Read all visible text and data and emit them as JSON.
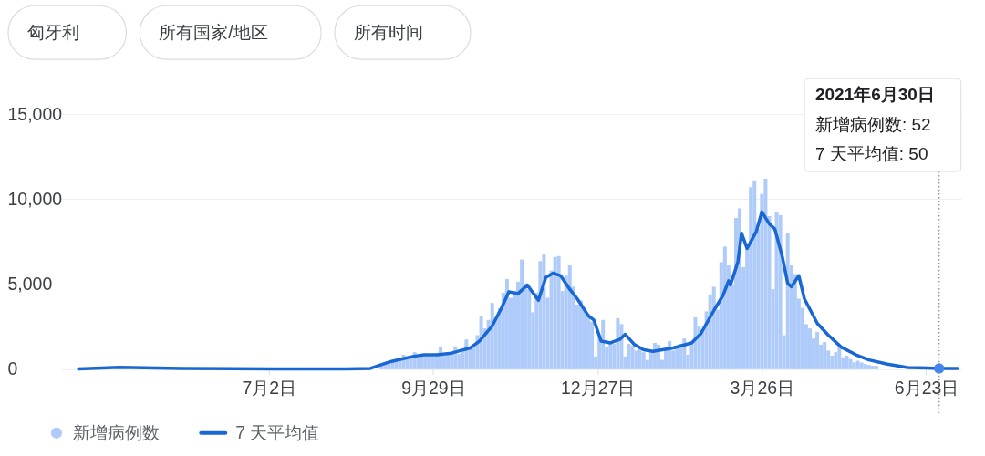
{
  "chart_data": [
    {
      "type": "other",
      "annotations": [
        "匈牙利",
        "所有国家/地区",
        "所有时间"
      ]
    },
    {
      "type": "bar",
      "xlim": [
        "2020-03-12",
        "2021-07-12"
      ],
      "xticks": [
        {
          "value": "2020-07-02",
          "label": "7月2日"
        },
        {
          "value": "2020-09-29",
          "label": "9月29日"
        },
        {
          "value": "2020-12-27",
          "label": "12月27日"
        },
        {
          "value": "2021-03-26",
          "label": "3月26日"
        },
        {
          "value": "2021-06-23",
          "label": "6月23日"
        }
      ],
      "ylim": [
        0,
        15000
      ],
      "yticks": [
        0,
        {
          "value": 5000,
          "label": "5,000"
        },
        {
          "value": 10000,
          "label": "10,000"
        },
        {
          "value": 15000,
          "label": "15,000"
        }
      ],
      "grid": "y",
      "legend": "bottom left",
      "series": [
        {
          "name": "新增病例数",
          "type": "bar",
          "color": "#aecbfa",
          "x": [
            "2020-09-01",
            "2020-09-03",
            "2020-09-05",
            "2020-09-07",
            "2020-09-09",
            "2020-09-11",
            "2020-09-13",
            "2020-09-15",
            "2020-09-17",
            "2020-09-19",
            "2020-09-21",
            "2020-09-23",
            "2020-09-25",
            "2020-09-27",
            "2020-09-29",
            "2020-10-01",
            "2020-10-03",
            "2020-10-05",
            "2020-10-07",
            "2020-10-09",
            "2020-10-11",
            "2020-10-13",
            "2020-10-15",
            "2020-10-17",
            "2020-10-19",
            "2020-10-21",
            "2020-10-23",
            "2020-10-25",
            "2020-10-27",
            "2020-10-29",
            "2020-10-31",
            "2020-11-02",
            "2020-11-04",
            "2020-11-06",
            "2020-11-08",
            "2020-11-10",
            "2020-11-12",
            "2020-11-14",
            "2020-11-16",
            "2020-11-18",
            "2020-11-20",
            "2020-11-22",
            "2020-11-24",
            "2020-11-26",
            "2020-11-28",
            "2020-11-30",
            "2020-12-02",
            "2020-12-04",
            "2020-12-06",
            "2020-12-08",
            "2020-12-10",
            "2020-12-12",
            "2020-12-14",
            "2020-12-16",
            "2020-12-18",
            "2020-12-20",
            "2020-12-22",
            "2020-12-24",
            "2020-12-26",
            "2020-12-28",
            "2020-12-30",
            "2021-01-01",
            "2021-01-03",
            "2021-01-05",
            "2021-01-07",
            "2021-01-09",
            "2021-01-11",
            "2021-01-13",
            "2021-01-15",
            "2021-01-17",
            "2021-01-19",
            "2021-01-21",
            "2021-01-23",
            "2021-01-25",
            "2021-01-27",
            "2021-01-29",
            "2021-01-31",
            "2021-02-02",
            "2021-02-04",
            "2021-02-06",
            "2021-02-08",
            "2021-02-10",
            "2021-02-12",
            "2021-02-14",
            "2021-02-16",
            "2021-02-18",
            "2021-02-20",
            "2021-02-22",
            "2021-02-24",
            "2021-02-26",
            "2021-02-28",
            "2021-03-02",
            "2021-03-04",
            "2021-03-06",
            "2021-03-08",
            "2021-03-10",
            "2021-03-12",
            "2021-03-14",
            "2021-03-16",
            "2021-03-18",
            "2021-03-20",
            "2021-03-22",
            "2021-03-24",
            "2021-03-26",
            "2021-03-28",
            "2021-03-30",
            "2021-04-01",
            "2021-04-03",
            "2021-04-05",
            "2021-04-07",
            "2021-04-09",
            "2021-04-11",
            "2021-04-13",
            "2021-04-15",
            "2021-04-17",
            "2021-04-19",
            "2021-04-21",
            "2021-04-23",
            "2021-04-25",
            "2021-04-27",
            "2021-04-29",
            "2021-05-01",
            "2021-05-03",
            "2021-05-05",
            "2021-05-07",
            "2021-05-09",
            "2021-05-11",
            "2021-05-13",
            "2021-05-15",
            "2021-05-17",
            "2021-05-19",
            "2021-05-21",
            "2021-05-23",
            "2021-05-25",
            "2021-05-27"
          ],
          "values": [
            250,
            350,
            450,
            500,
            600,
            700,
            850,
            700,
            800,
            1000,
            700,
            850,
            900,
            800,
            750,
            900,
            1300,
            800,
            950,
            1000,
            1350,
            900,
            1100,
            1750,
            1300,
            1500,
            2000,
            3100,
            2400,
            2900,
            3900,
            3000,
            3600,
            4500,
            5300,
            4200,
            4600,
            5150,
            6450,
            5050,
            4700,
            3350,
            4500,
            6350,
            6800,
            4200,
            5800,
            6600,
            6650,
            4600,
            5500,
            6100,
            4850,
            3800,
            4050,
            3500,
            3250,
            2800,
            750,
            1900,
            2900,
            1300,
            1650,
            1500,
            3000,
            2650,
            750,
            1500,
            1400,
            1100,
            1200,
            1000,
            550,
            1000,
            1550,
            1450,
            550,
            1200,
            1650,
            1100,
            1300,
            1500,
            1800,
            850,
            1500,
            3050,
            2500,
            2300,
            3400,
            4400,
            4850,
            3500,
            6300,
            7200,
            6100,
            5000,
            8900,
            9450,
            6000,
            7350,
            10700,
            11100,
            8250,
            10300,
            11200,
            9000,
            4700,
            9250,
            9050,
            2000,
            8000,
            6100,
            5600,
            4150,
            3600,
            2650,
            2400,
            1800,
            2200,
            1450,
            1600,
            1100,
            800,
            1000,
            1300,
            700,
            800,
            600,
            400,
            500,
            400,
            300,
            250,
            200,
            200
          ]
        },
        {
          "name": "7 天平均值",
          "type": "line",
          "color": "#1967d2",
          "x": [
            "2020-03-21",
            "2020-04-12",
            "2020-05-16",
            "2020-07-04",
            "2020-08-13",
            "2020-08-26",
            "2020-09-06",
            "2020-09-18",
            "2020-09-24",
            "2020-10-01",
            "2020-10-09",
            "2020-10-19",
            "2020-10-24",
            "2020-10-31",
            "2020-11-05",
            "2020-11-09",
            "2020-11-14",
            "2020-11-19",
            "2020-11-25",
            "2020-11-29",
            "2020-12-03",
            "2020-12-07",
            "2020-12-12",
            "2020-12-16",
            "2020-12-22",
            "2020-12-25",
            "2020-12-29",
            "2021-01-03",
            "2021-01-08",
            "2021-01-11",
            "2021-01-16",
            "2021-01-21",
            "2021-01-26",
            "2021-02-06",
            "2021-02-16",
            "2021-02-21",
            "2021-02-28",
            "2021-03-05",
            "2021-03-08",
            "2021-03-09",
            "2021-03-13",
            "2021-03-15",
            "2021-03-18",
            "2021-03-23",
            "2021-03-26",
            "2021-03-30",
            "2021-04-02",
            "2021-04-06",
            "2021-04-09",
            "2021-04-11",
            "2021-04-15",
            "2021-04-18",
            "2021-04-25",
            "2021-05-01",
            "2021-05-08",
            "2021-05-16",
            "2021-05-23",
            "2021-06-02",
            "2021-06-13",
            "2021-06-30",
            "2021-07-10"
          ],
          "values": [
            20,
            110,
            50,
            20,
            20,
            50,
            450,
            750,
            850,
            850,
            950,
            1250,
            1650,
            2550,
            3600,
            4550,
            4450,
            4950,
            4050,
            5400,
            5650,
            5500,
            4700,
            4150,
            3150,
            2900,
            1650,
            1550,
            1750,
            2050,
            1450,
            1150,
            1050,
            1250,
            1550,
            2100,
            3450,
            4350,
            5200,
            4950,
            6300,
            8000,
            7100,
            8100,
            9250,
            8550,
            8250,
            6650,
            5050,
            4850,
            5500,
            4150,
            2700,
            2000,
            1300,
            850,
            550,
            300,
            100,
            50,
            50
          ]
        },
        {
          "type": "scatter",
          "color": "#4285f4",
          "marker": "circle",
          "x": [
            "2021-06-30"
          ],
          "values": [
            50
          ]
        }
      ],
      "ref_lines": [
        {
          "axis": "x",
          "value": "2021-06-30",
          "line_style": "dotted",
          "color": "#80868b"
        }
      ],
      "annotations": [
        "2021年6月30日",
        "新增病例数: 52",
        "7 天平均值: 50"
      ]
    }
  ]
}
